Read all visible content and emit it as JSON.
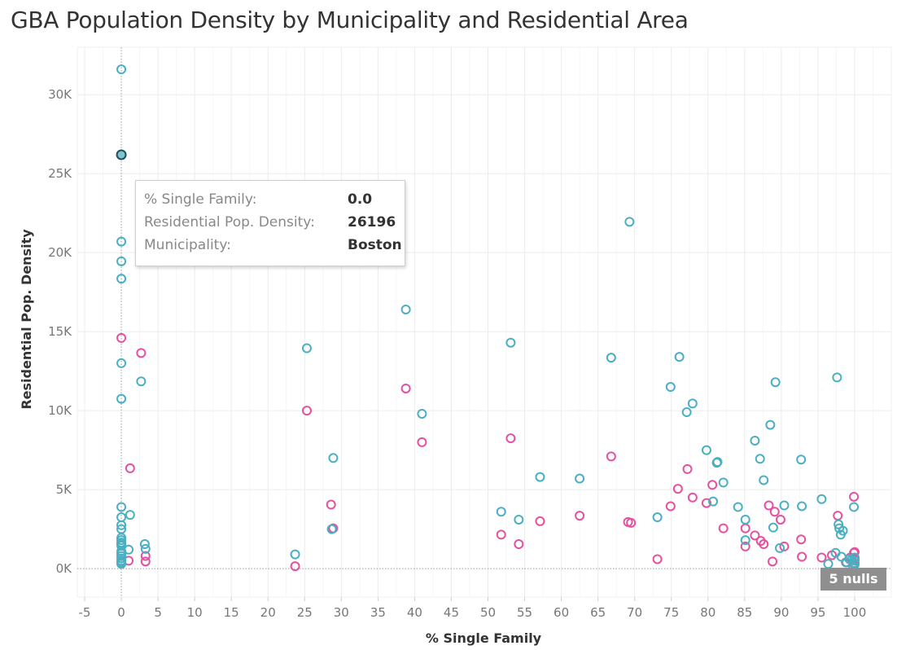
{
  "title": "GBA Population Density by Municipality and Residential Area",
  "tooltip": {
    "rows": [
      {
        "label": "% Single Family:",
        "value": "0.0"
      },
      {
        "label": "Residential Pop. Density:",
        "value": "26196"
      },
      {
        "label": "Municipality:",
        "value": "Boston"
      }
    ]
  },
  "nulls_badge": "5 nulls",
  "colors": {
    "teal": "#4bafc2",
    "pink": "#e5519f",
    "highlight": "#1f4e5c"
  },
  "chart_data": {
    "type": "scatter",
    "xlabel": "% Single Family",
    "ylabel": "Residential Pop. Density",
    "xlim": [
      -6,
      105
    ],
    "ylim": [
      -1800,
      33000
    ],
    "x_ticks": [
      -5,
      0,
      5,
      10,
      15,
      20,
      25,
      30,
      35,
      40,
      45,
      50,
      55,
      60,
      65,
      70,
      75,
      80,
      85,
      90,
      95,
      100
    ],
    "x_tick_labels": [
      "-5",
      "0",
      "5",
      "10",
      "15",
      "20",
      "25",
      "30",
      "35",
      "40",
      "45",
      "50",
      "55",
      "60",
      "65",
      "70",
      "75",
      "80",
      "85",
      "90",
      "95",
      "100"
    ],
    "y_ticks": [
      0,
      5000,
      10000,
      15000,
      20000,
      25000,
      30000
    ],
    "y_tick_labels": [
      "0K",
      "5K",
      "10K",
      "15K",
      "20K",
      "25K",
      "30K"
    ],
    "grid": true,
    "highlighted": {
      "x": 0,
      "y": 26196
    },
    "series": [
      {
        "color": "#4bafc2",
        "points": [
          [
            0,
            31600
          ],
          [
            0,
            26200
          ],
          [
            0,
            20700
          ],
          [
            0,
            19450
          ],
          [
            0,
            18350
          ],
          [
            0,
            13000
          ],
          [
            0,
            10750
          ],
          [
            0,
            3900
          ],
          [
            0,
            3250
          ],
          [
            0,
            2750
          ],
          [
            0,
            2500
          ],
          [
            0,
            1950
          ],
          [
            0,
            1800
          ],
          [
            0,
            1650
          ],
          [
            0,
            1550
          ],
          [
            0,
            1450
          ],
          [
            0,
            1100
          ],
          [
            0,
            950
          ],
          [
            0,
            800
          ],
          [
            0,
            650
          ],
          [
            0,
            500
          ],
          [
            0,
            400
          ],
          [
            0,
            300
          ],
          [
            1.2,
            3400
          ],
          [
            1,
            1200
          ],
          [
            2.7,
            11850
          ],
          [
            3.2,
            1550
          ],
          [
            3.3,
            1250
          ],
          [
            23.7,
            900
          ],
          [
            25.3,
            13950
          ],
          [
            28.9,
            7000
          ],
          [
            28.7,
            2500
          ],
          [
            38.8,
            16400
          ],
          [
            41,
            9800
          ],
          [
            51.8,
            3600
          ],
          [
            53.1,
            14300
          ],
          [
            54.2,
            3100
          ],
          [
            57.1,
            5800
          ],
          [
            62.5,
            5700
          ],
          [
            66.8,
            13350
          ],
          [
            69.3,
            21950
          ],
          [
            73.1,
            3250
          ],
          [
            74.9,
            11500
          ],
          [
            76.1,
            13400
          ],
          [
            77.1,
            9900
          ],
          [
            77.9,
            10450
          ],
          [
            79.8,
            7500
          ],
          [
            81.2,
            6700
          ],
          [
            81.3,
            6750
          ],
          [
            82.1,
            5450
          ],
          [
            80.7,
            4250
          ],
          [
            84.1,
            3900
          ],
          [
            85.1,
            3100
          ],
          [
            85.1,
            1800
          ],
          [
            86.4,
            8100
          ],
          [
            87.1,
            6950
          ],
          [
            87.6,
            5600
          ],
          [
            88.5,
            9100
          ],
          [
            89.2,
            11800
          ],
          [
            88.9,
            2600
          ],
          [
            89.8,
            1300
          ],
          [
            90.4,
            4000
          ],
          [
            92.7,
            6900
          ],
          [
            92.8,
            3950
          ],
          [
            95.5,
            4400
          ],
          [
            96.4,
            300
          ],
          [
            97.4,
            1000
          ],
          [
            97.6,
            12100
          ],
          [
            97.8,
            2800
          ],
          [
            97.9,
            2550
          ],
          [
            98.1,
            2150
          ],
          [
            98.4,
            2400
          ],
          [
            98.2,
            750
          ],
          [
            98.9,
            400
          ],
          [
            99.3,
            600
          ],
          [
            99.6,
            550
          ],
          [
            99.9,
            3900
          ],
          [
            99.9,
            350
          ],
          [
            100,
            250
          ],
          [
            100,
            500
          ],
          [
            100,
            700
          ],
          [
            99.8,
            100
          ]
        ]
      },
      {
        "color": "#e5519f",
        "points": [
          [
            0,
            14600
          ],
          [
            1.2,
            6350
          ],
          [
            2.7,
            13650
          ],
          [
            1,
            500
          ],
          [
            3.3,
            800
          ],
          [
            3.3,
            450
          ],
          [
            23.7,
            150
          ],
          [
            25.3,
            10000
          ],
          [
            28.6,
            4050
          ],
          [
            28.9,
            2550
          ],
          [
            38.8,
            11400
          ],
          [
            41,
            8000
          ],
          [
            51.8,
            2150
          ],
          [
            53.1,
            8250
          ],
          [
            54.2,
            1550
          ],
          [
            57.1,
            3000
          ],
          [
            62.5,
            3350
          ],
          [
            66.8,
            7100
          ],
          [
            69.1,
            2950
          ],
          [
            69.5,
            2900
          ],
          [
            73.1,
            600
          ],
          [
            74.9,
            3950
          ],
          [
            75.9,
            5050
          ],
          [
            77.2,
            6300
          ],
          [
            77.9,
            4500
          ],
          [
            79.8,
            4150
          ],
          [
            80.6,
            5300
          ],
          [
            82.1,
            2550
          ],
          [
            85.1,
            2550
          ],
          [
            85.1,
            1400
          ],
          [
            86.4,
            2100
          ],
          [
            87.2,
            1750
          ],
          [
            87.6,
            1550
          ],
          [
            88.3,
            4000
          ],
          [
            89.1,
            3600
          ],
          [
            89.9,
            3100
          ],
          [
            90.4,
            1400
          ],
          [
            88.8,
            450
          ],
          [
            92.7,
            1850
          ],
          [
            92.8,
            750
          ],
          [
            95.5,
            700
          ],
          [
            96.9,
            850
          ],
          [
            97.7,
            3350
          ],
          [
            98.8,
            400
          ],
          [
            99.4,
            700
          ],
          [
            99.9,
            4550
          ],
          [
            99.9,
            1000
          ],
          [
            100,
            1050
          ],
          [
            100,
            600
          ],
          [
            100,
            350
          ],
          [
            99.8,
            150
          ]
        ]
      }
    ]
  }
}
